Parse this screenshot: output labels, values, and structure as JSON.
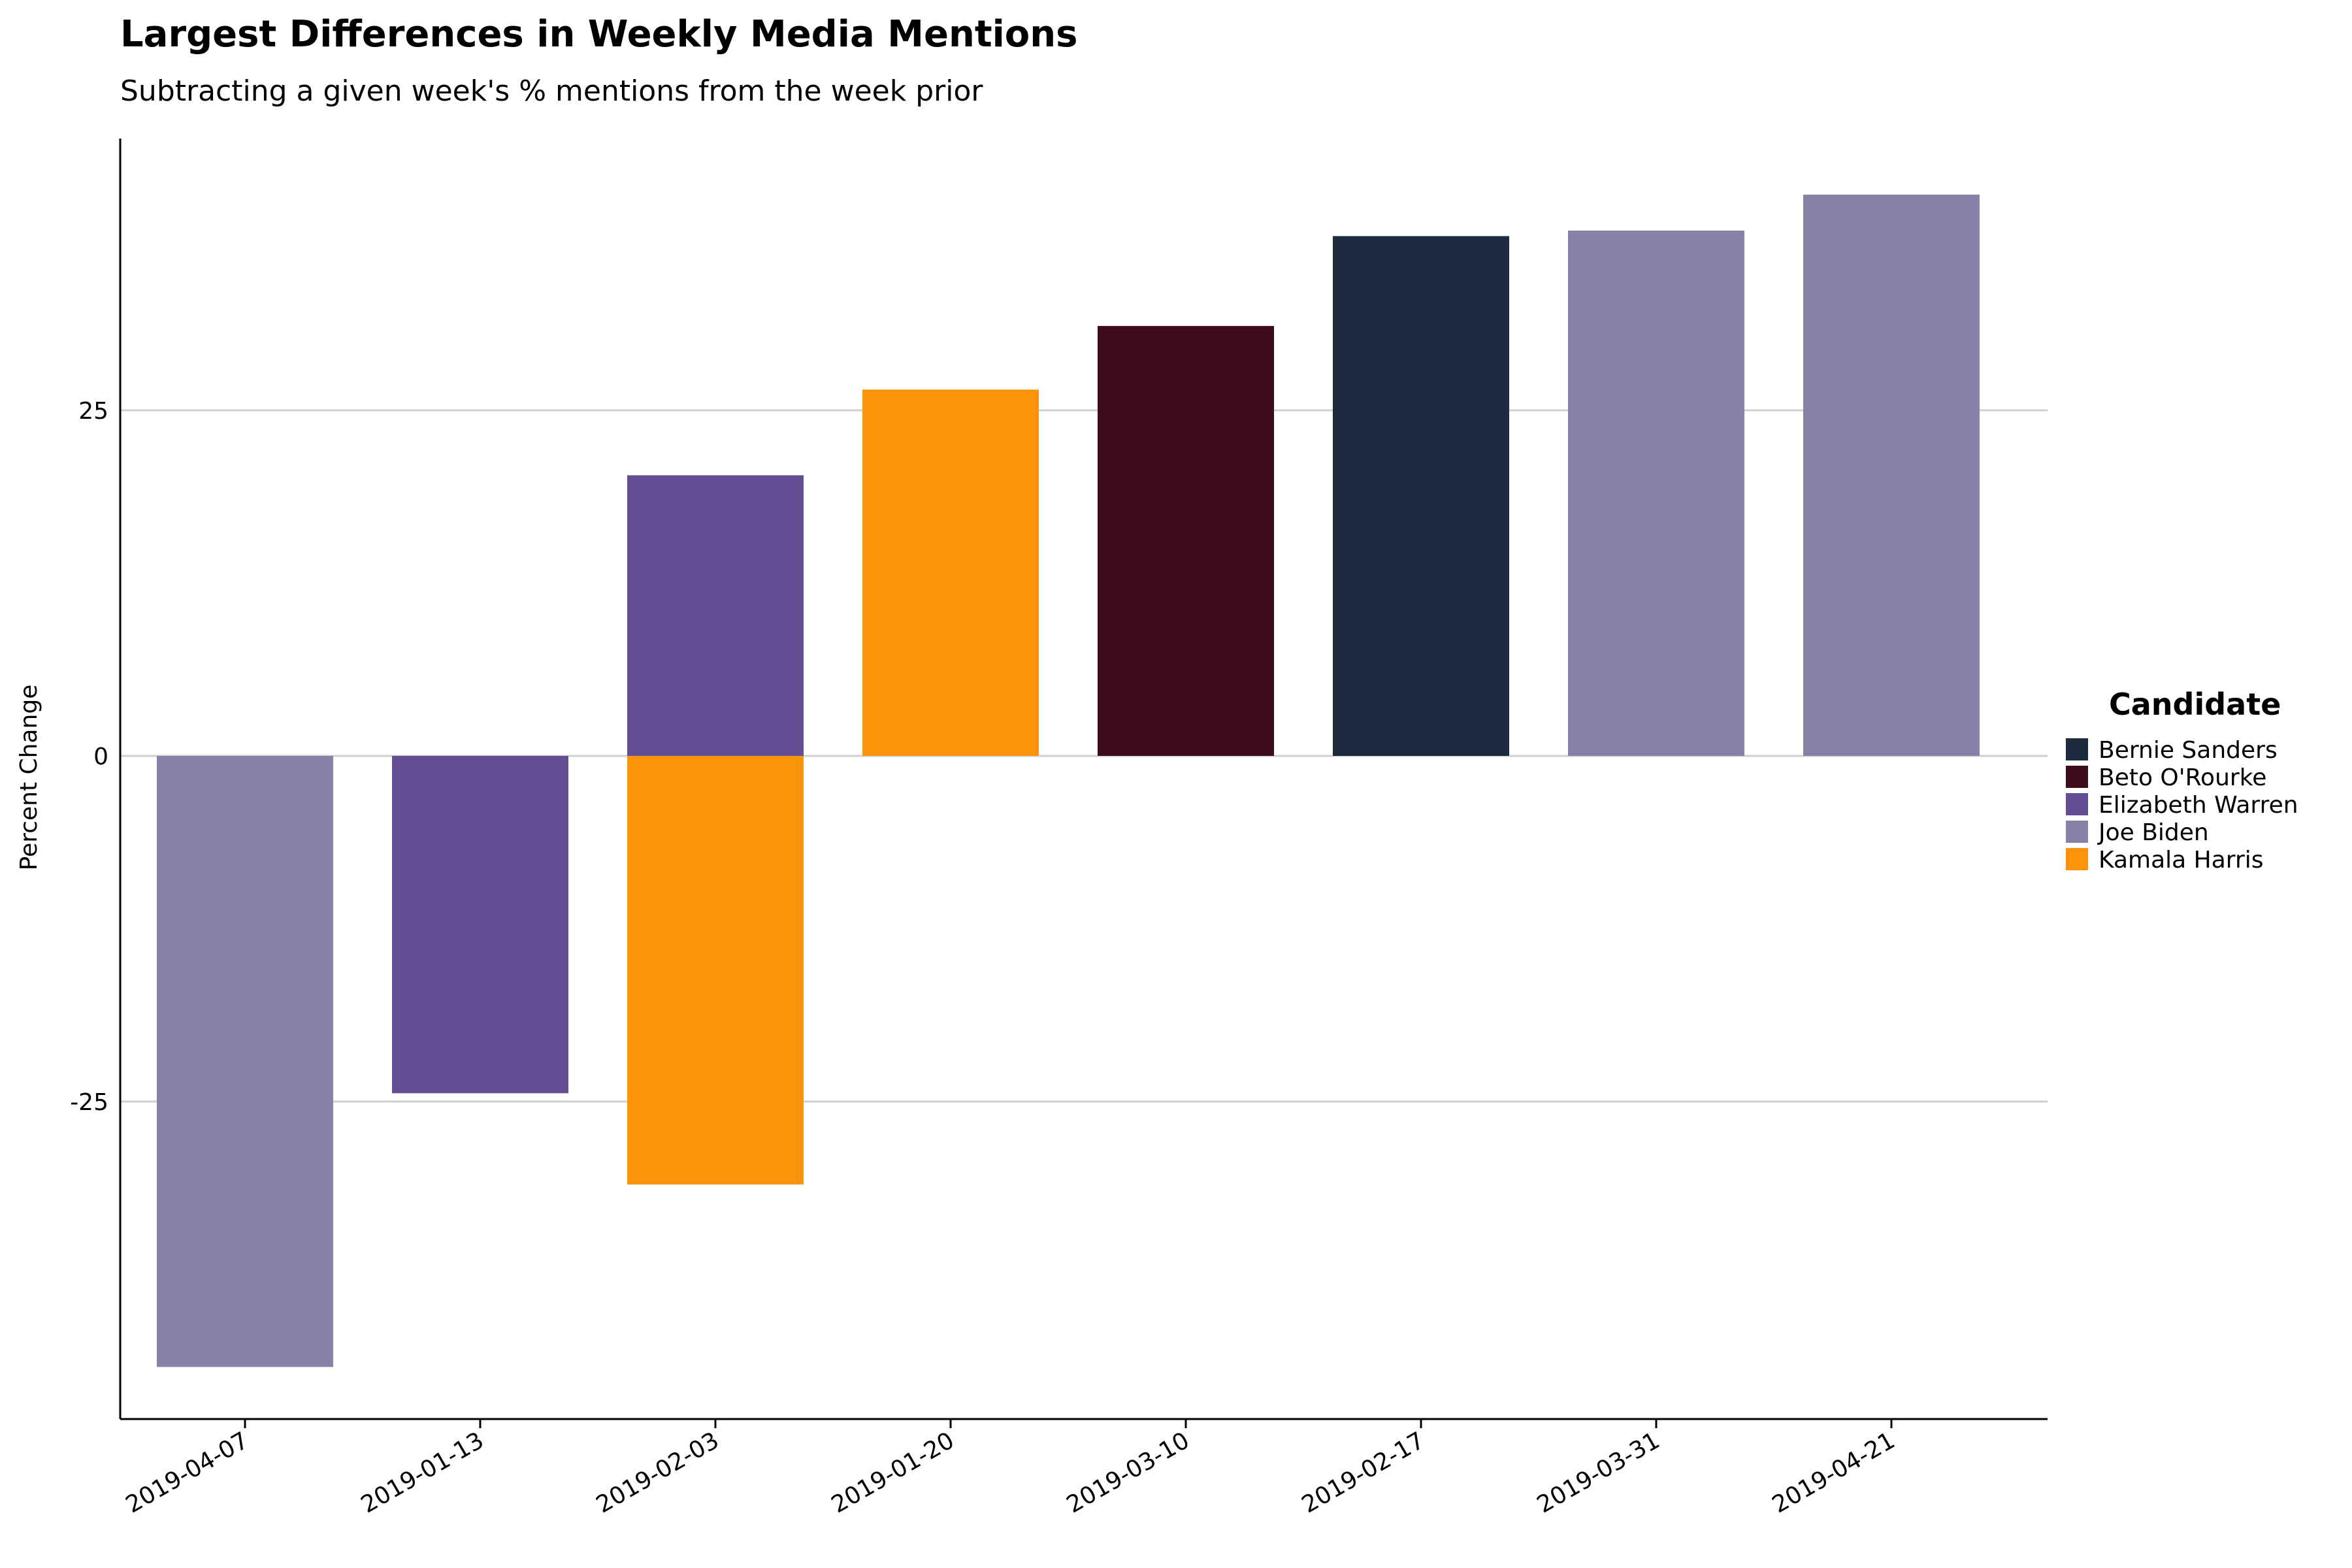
{
  "chart_data": {
    "type": "bar",
    "title": "Largest Differences in Weekly Media Mentions",
    "subtitle": "Subtracting a given week's % mentions from the week prior",
    "xlabel": "",
    "ylabel": "Percent Change",
    "ylim": [
      -48,
      45
    ],
    "yticks": [
      25,
      0,
      -25
    ],
    "ytick_labels": [
      "25",
      "0",
      "-25"
    ],
    "grid": "horizontal",
    "legend": {
      "title": "Candidate",
      "placement": "right"
    },
    "categories": [
      "2019-04-07",
      "2019-01-13",
      "2019-02-03",
      "2019-01-20",
      "2019-03-10",
      "2019-02-17",
      "2019-03-31",
      "2019-04-21"
    ],
    "series": [
      {
        "name": "Bernie Sanders",
        "color": "#1c2b3e",
        "values": [
          null,
          null,
          null,
          null,
          null,
          37.6,
          null,
          null
        ]
      },
      {
        "name": "Beto O'Rourke",
        "color": "#3d0c1d",
        "values": [
          null,
          null,
          null,
          null,
          31.1,
          null,
          null,
          null
        ]
      },
      {
        "name": "Elizabeth Warren",
        "color": "#644e93",
        "values": [
          null,
          -24.4,
          20.3,
          null,
          null,
          null,
          null,
          null
        ]
      },
      {
        "name": "Joe Biden",
        "color": "#8681a7",
        "values": [
          -44.2,
          null,
          null,
          null,
          null,
          null,
          38.0,
          40.6
        ]
      },
      {
        "name": "Kamala Harris",
        "color": "#fb940b",
        "values": [
          null,
          null,
          -31.0,
          26.5,
          null,
          null,
          null,
          null
        ]
      }
    ]
  }
}
